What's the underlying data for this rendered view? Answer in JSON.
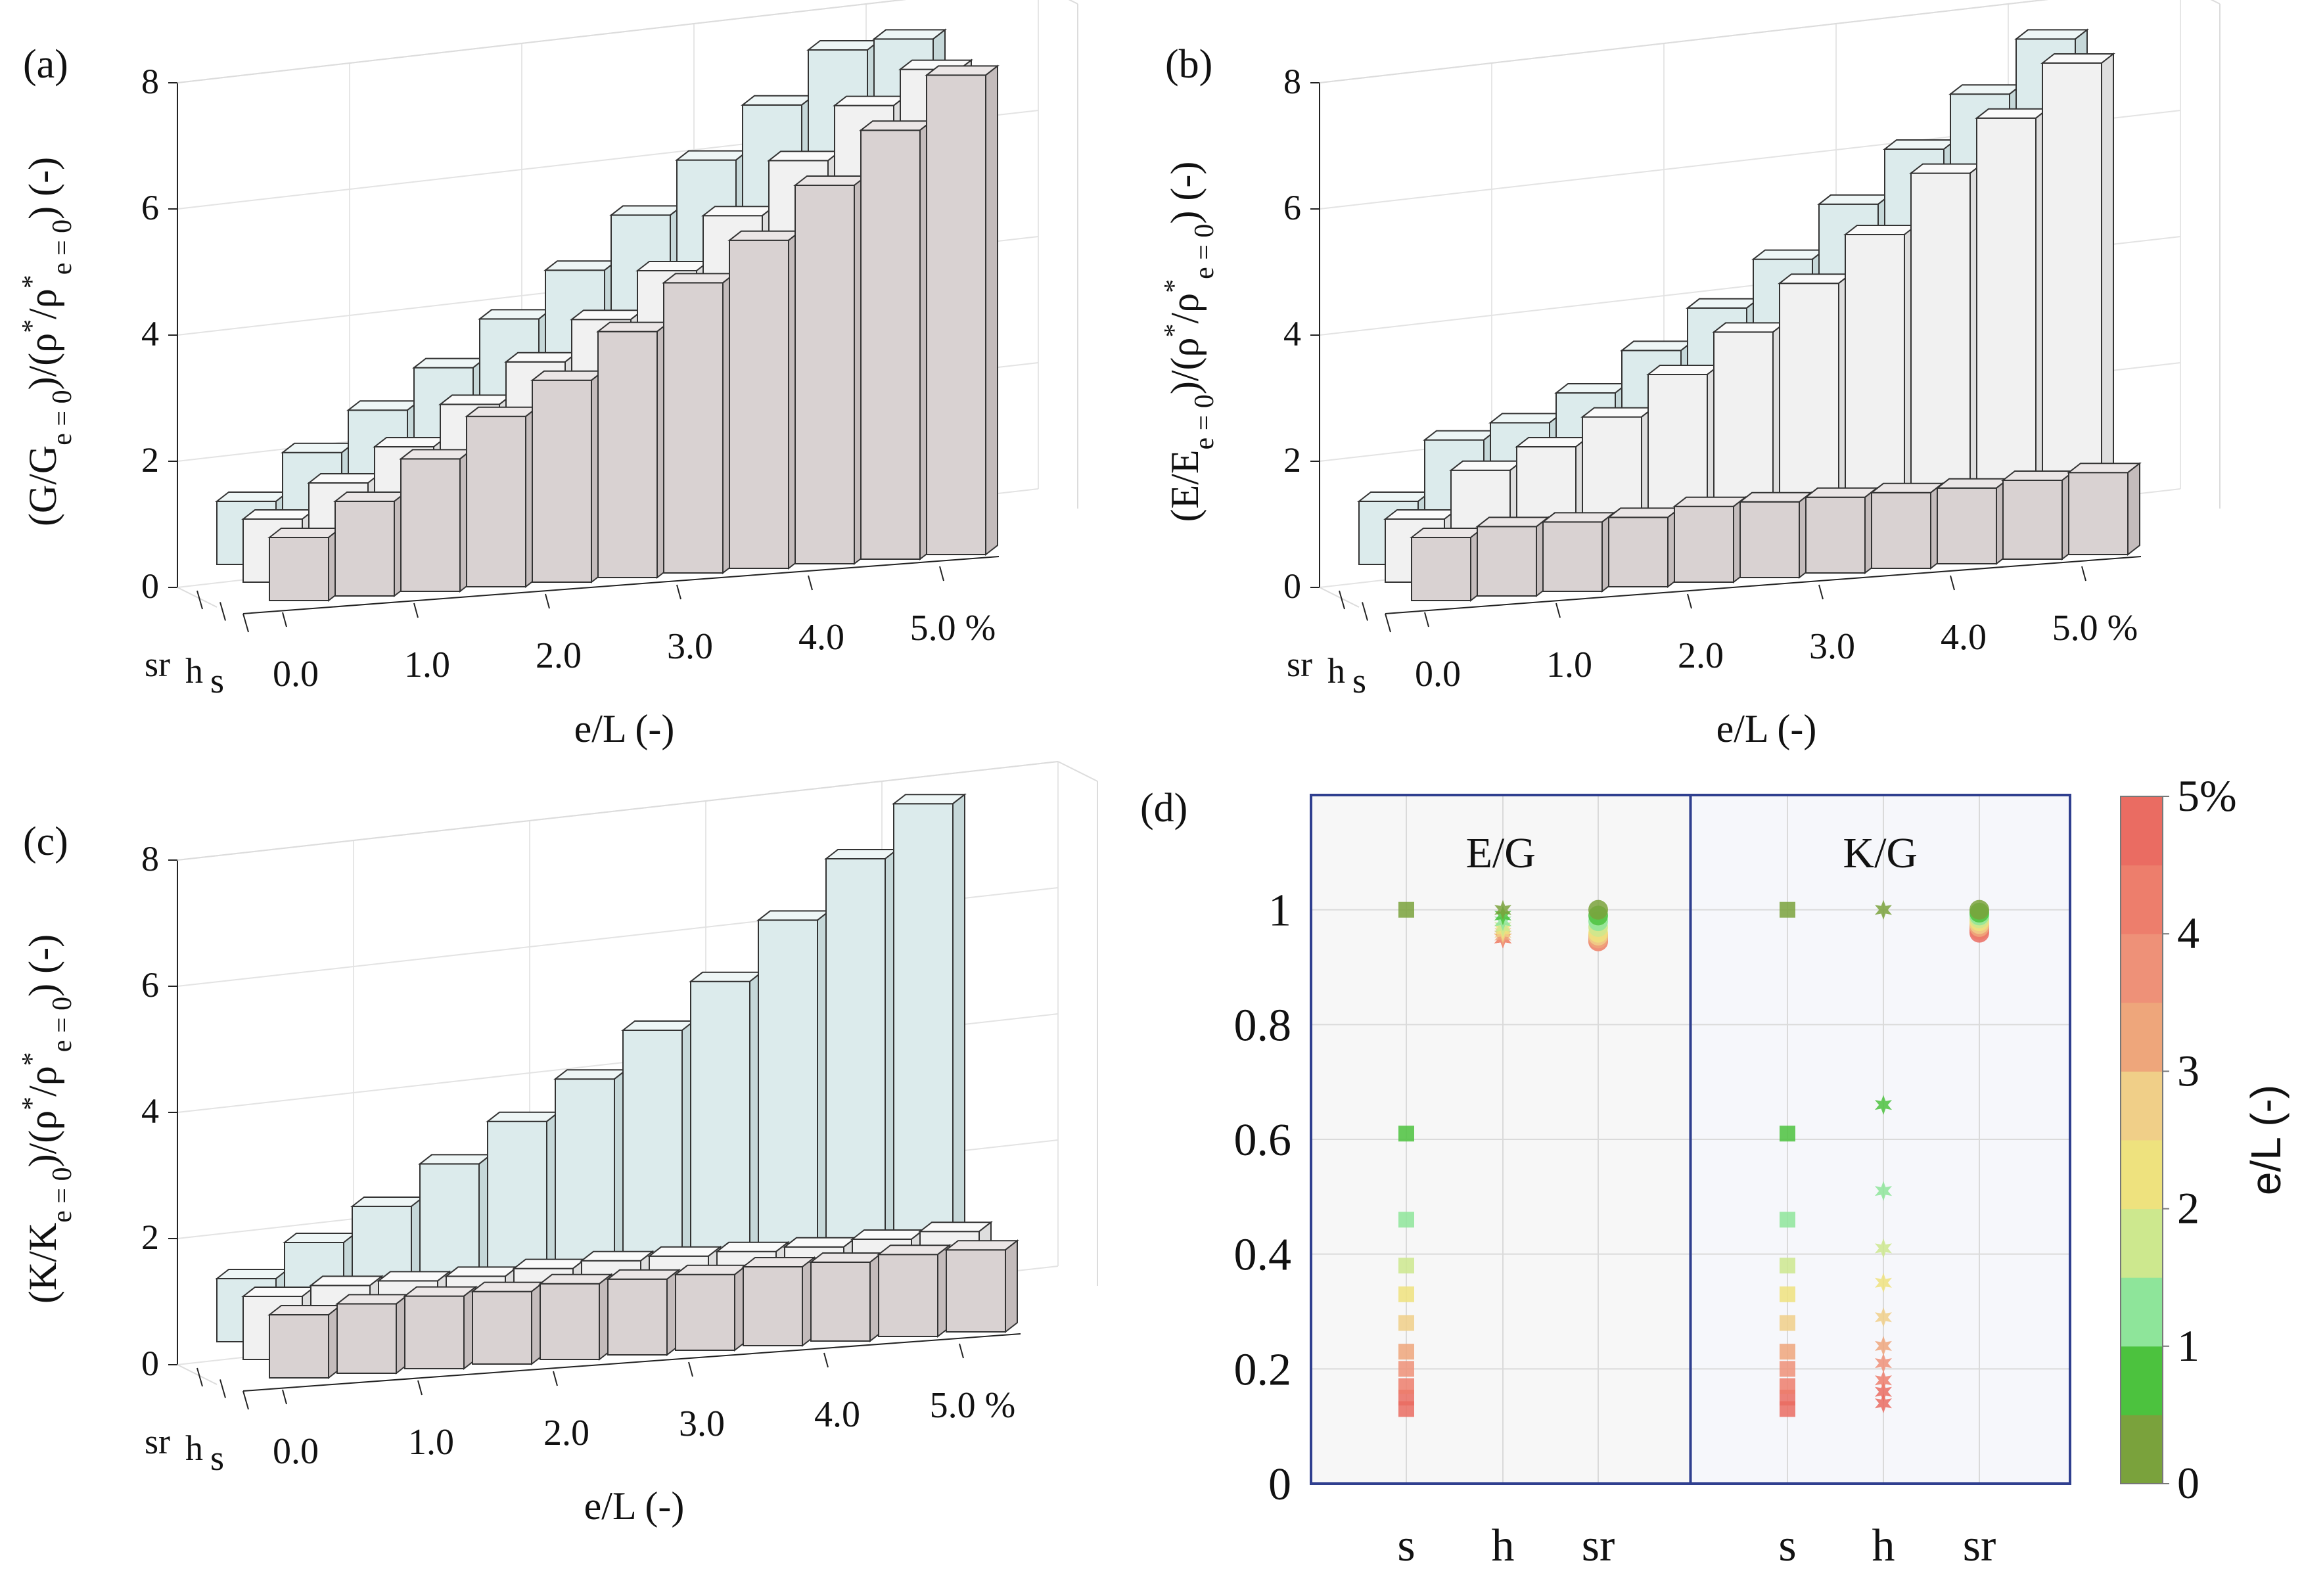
{
  "figure": {
    "panel_labels": [
      "(a)",
      "(b)",
      "(c)",
      "(d)"
    ]
  },
  "colors": {
    "light_blue": "#dcebec",
    "light_gray": "#f1f1f1",
    "gray": "#d9d2d2",
    "edge": "#333333",
    "frame_blue": "#2f3f8f"
  },
  "chart_data": [
    {
      "type": "bar3d",
      "panel": "(a)",
      "ylabel": "(G/G_e=0)/(ρ*/ρ*_e=0)  (-)",
      "xlabel": "e/L (-)",
      "x_ticks": [
        "0.0",
        "1.0",
        "2.0",
        "3.0",
        "4.0",
        "5.0 %"
      ],
      "depth_ticks": [
        "sr",
        "h",
        "s"
      ],
      "ylim": [
        0,
        8
      ],
      "y_ticks": [
        0,
        2,
        4,
        6,
        8
      ],
      "grid": true,
      "categories": [
        0.0,
        0.5,
        1.0,
        1.5,
        2.0,
        2.5,
        3.0,
        3.5,
        4.0,
        4.5,
        5.0
      ],
      "series": [
        {
          "name": "sr",
          "values": [
            1.0,
            1.7,
            2.3,
            2.9,
            3.6,
            4.3,
            5.1,
            5.9,
            6.7,
            7.5,
            7.6
          ]
        },
        {
          "name": "h",
          "values": [
            1.0,
            1.5,
            2.0,
            2.6,
            3.2,
            3.8,
            4.5,
            5.3,
            6.1,
            6.9,
            7.4
          ]
        },
        {
          "name": "s",
          "values": [
            1.0,
            1.5,
            2.1,
            2.7,
            3.2,
            3.9,
            4.6,
            5.2,
            6.0,
            6.8,
            7.6
          ]
        }
      ]
    },
    {
      "type": "bar3d",
      "panel": "(b)",
      "ylabel": "(E/E_e=0)/(ρ*/ρ*_e=0)  (-)",
      "xlabel": "e/L (-)",
      "x_ticks": [
        "0.0",
        "1.0",
        "2.0",
        "3.0",
        "4.0",
        "5.0 %"
      ],
      "depth_ticks": [
        "sr",
        "h",
        "s"
      ],
      "ylim": [
        0,
        8
      ],
      "y_ticks": [
        0,
        2,
        4,
        6,
        8
      ],
      "grid": true,
      "categories": [
        0.0,
        0.5,
        1.0,
        1.5,
        2.0,
        2.5,
        3.0,
        3.5,
        4.0,
        4.5,
        5.0
      ],
      "series": [
        {
          "name": "sr",
          "values": [
            1.0,
            1.9,
            2.1,
            2.5,
            3.1,
            3.7,
            4.4,
            5.2,
            6.0,
            6.8,
            7.6
          ]
        },
        {
          "name": "h",
          "values": [
            1.0,
            1.7,
            2.0,
            2.4,
            3.0,
            3.6,
            4.3,
            5.0,
            5.9,
            6.7,
            7.5
          ]
        },
        {
          "name": "s",
          "values": [
            1.0,
            1.1,
            1.1,
            1.1,
            1.2,
            1.2,
            1.2,
            1.2,
            1.2,
            1.25,
            1.3
          ]
        }
      ]
    },
    {
      "type": "bar3d",
      "panel": "(c)",
      "ylabel": "(K/K_e=0)/(ρ*/ρ*_e=0)  (-)",
      "xlabel": "e/L (-)",
      "x_ticks": [
        "0.0",
        "1.0",
        "2.0",
        "3.0",
        "4.0",
        "5.0 %"
      ],
      "depth_ticks": [
        "sr",
        "h",
        "s"
      ],
      "ylim": [
        0,
        8
      ],
      "y_ticks": [
        0,
        2,
        4,
        6,
        8
      ],
      "grid": true,
      "categories": [
        0.0,
        0.5,
        1.0,
        1.5,
        2.0,
        2.5,
        3.0,
        3.5,
        4.0,
        4.5,
        5.0
      ],
      "series": [
        {
          "name": "sr",
          "values": [
            1.0,
            1.5,
            2.0,
            2.6,
            3.2,
            3.8,
            4.5,
            5.2,
            6.1,
            7.0,
            7.8
          ]
        },
        {
          "name": "h",
          "values": [
            1.0,
            1.1,
            1.1,
            1.1,
            1.15,
            1.2,
            1.2,
            1.2,
            1.2,
            1.25,
            1.3
          ]
        },
        {
          "name": "s",
          "values": [
            1.0,
            1.1,
            1.15,
            1.15,
            1.2,
            1.2,
            1.2,
            1.25,
            1.25,
            1.3,
            1.3
          ]
        }
      ]
    },
    {
      "type": "scatter",
      "panel": "(d)",
      "ylim": [
        0,
        1.2
      ],
      "y_ticks": [
        "0",
        "0.2",
        "0.4",
        "0.6",
        "0.8",
        "1"
      ],
      "x_ticks": [
        "s",
        "h",
        "sr"
      ],
      "grid": true,
      "subpanels": [
        {
          "title": "E/G",
          "series": [
            {
              "name": "s",
              "marker": "square",
              "points": [
                [
                  0,
                  1.0
                ],
                [
                  1,
                  0.61
                ],
                [
                  2,
                  0.46
                ],
                [
                  3,
                  0.38
                ],
                [
                  4,
                  0.33
                ],
                [
                  5,
                  0.28
                ],
                [
                  6,
                  0.23
                ],
                [
                  7,
                  0.2
                ],
                [
                  8,
                  0.17
                ],
                [
                  9,
                  0.15
                ],
                [
                  10,
                  0.13
                ]
              ]
            },
            {
              "name": "h",
              "marker": "star",
              "points": [
                [
                  0,
                  1.0
                ],
                [
                  1,
                  0.99
                ],
                [
                  2,
                  0.98
                ],
                [
                  3,
                  0.97
                ],
                [
                  4,
                  0.965
                ],
                [
                  5,
                  0.96
                ],
                [
                  6,
                  0.955
                ],
                [
                  7,
                  0.95
                ],
                [
                  8,
                  0.95
                ],
                [
                  9,
                  0.95
                ],
                [
                  10,
                  0.95
                ]
              ]
            },
            {
              "name": "sr",
              "marker": "circle",
              "points": [
                [
                  0,
                  1.0
                ],
                [
                  1,
                  0.99
                ],
                [
                  2,
                  0.98
                ],
                [
                  3,
                  0.97
                ],
                [
                  4,
                  0.96
                ],
                [
                  5,
                  0.955
                ],
                [
                  6,
                  0.95
                ],
                [
                  7,
                  0.945
                ],
                [
                  8,
                  0.945
                ],
                [
                  9,
                  0.95
                ],
                [
                  10,
                  0.955
                ]
              ]
            }
          ]
        },
        {
          "title": "K/G",
          "series": [
            {
              "name": "s",
              "marker": "square",
              "points": [
                [
                  0,
                  1.0
                ],
                [
                  1,
                  0.61
                ],
                [
                  2,
                  0.46
                ],
                [
                  3,
                  0.38
                ],
                [
                  4,
                  0.33
                ],
                [
                  5,
                  0.28
                ],
                [
                  6,
                  0.23
                ],
                [
                  7,
                  0.2
                ],
                [
                  8,
                  0.17
                ],
                [
                  9,
                  0.15
                ],
                [
                  10,
                  0.13
                ]
              ]
            },
            {
              "name": "h",
              "marker": "star",
              "points": [
                [
                  0,
                  1.0
                ],
                [
                  1,
                  0.66
                ],
                [
                  2,
                  0.51
                ],
                [
                  3,
                  0.41
                ],
                [
                  4,
                  0.35
                ],
                [
                  5,
                  0.29
                ],
                [
                  6,
                  0.24
                ],
                [
                  7,
                  0.21
                ],
                [
                  8,
                  0.18
                ],
                [
                  9,
                  0.16
                ],
                [
                  10,
                  0.14
                ]
              ]
            },
            {
              "name": "sr",
              "marker": "circle",
              "points": [
                [
                  0,
                  1.0
                ],
                [
                  1,
                  0.995
                ],
                [
                  2,
                  0.99
                ],
                [
                  3,
                  0.985
                ],
                [
                  4,
                  0.98
                ],
                [
                  5,
                  0.975
                ],
                [
                  6,
                  0.97
                ],
                [
                  7,
                  0.97
                ],
                [
                  8,
                  0.965
                ],
                [
                  9,
                  0.965
                ],
                [
                  10,
                  0.96
                ]
              ]
            }
          ]
        }
      ],
      "colorbar": {
        "label": "e/L (-)",
        "range": [
          0,
          5
        ],
        "tick_labels": [
          "0",
          "1",
          "2",
          "3",
          "4",
          "5%"
        ],
        "colors": [
          "#7aa23c",
          "#4cc23e",
          "#8ee59a",
          "#cde88e",
          "#eee27e",
          "#f0cf88",
          "#eea67b",
          "#ee9178",
          "#ed7e6c",
          "#ea6c62"
        ]
      }
    }
  ]
}
